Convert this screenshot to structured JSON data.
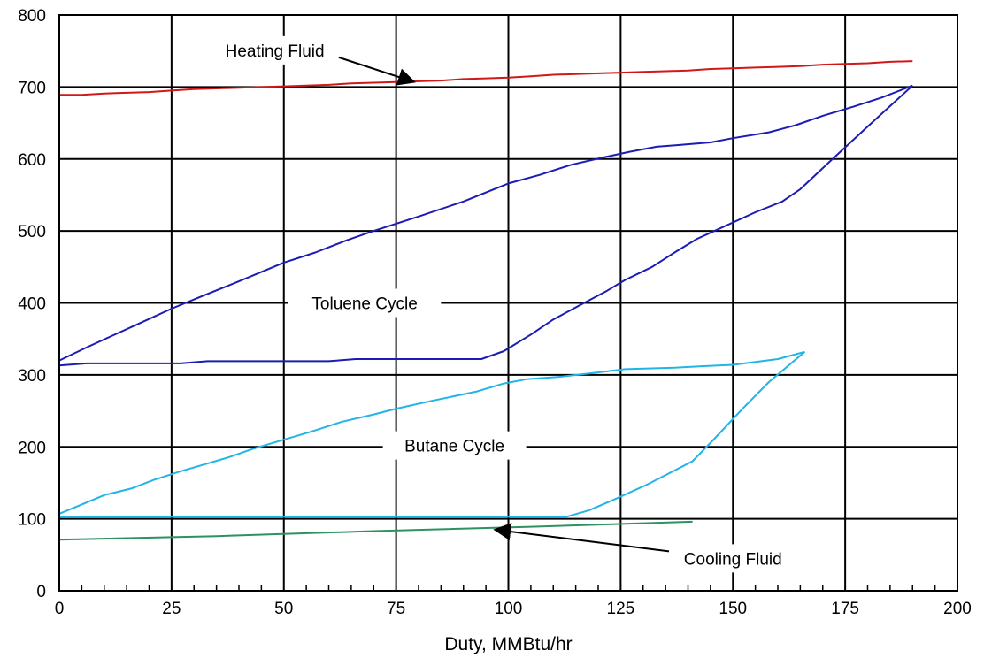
{
  "chart_data": {
    "type": "line",
    "title": "",
    "xlabel": "Duty, MMBtu/hr",
    "ylabel": "",
    "xlim": [
      0,
      200
    ],
    "ylim": [
      0,
      800
    ],
    "x_ticks": [
      0,
      25,
      50,
      75,
      100,
      125,
      150,
      175,
      200
    ],
    "y_ticks": [
      0,
      100,
      200,
      300,
      400,
      500,
      600,
      700,
      800
    ],
    "grid": true,
    "series": [
      {
        "color": "#d01818",
        "points": [
          [
            0,
            689
          ],
          [
            5,
            689
          ],
          [
            10,
            691
          ],
          [
            15,
            692
          ],
          [
            20,
            693
          ],
          [
            25,
            695
          ],
          [
            30,
            697
          ],
          [
            35,
            698
          ],
          [
            40,
            699
          ],
          [
            45,
            700
          ],
          [
            50,
            701
          ],
          [
            55,
            702
          ],
          [
            60,
            703
          ],
          [
            65,
            705
          ],
          [
            70,
            706
          ],
          [
            75,
            707
          ],
          [
            80,
            708
          ],
          [
            85,
            709
          ],
          [
            90,
            711
          ],
          [
            95,
            712
          ],
          [
            100,
            713
          ],
          [
            105,
            715
          ],
          [
            110,
            717
          ],
          [
            115,
            718
          ],
          [
            120,
            719
          ],
          [
            125,
            720
          ],
          [
            130,
            721
          ],
          [
            135,
            722
          ],
          [
            140,
            723
          ],
          [
            145,
            725
          ],
          [
            150,
            726
          ],
          [
            155,
            727
          ],
          [
            160,
            728
          ],
          [
            165,
            729
          ],
          [
            170,
            731
          ],
          [
            175,
            732
          ],
          [
            180,
            733
          ],
          [
            185,
            735
          ],
          [
            190,
            736
          ]
        ]
      },
      {
        "color": "#1c1cb4",
        "points": [
          [
            0,
            320
          ],
          [
            6,
            338
          ],
          [
            12,
            355
          ],
          [
            18,
            372
          ],
          [
            25,
            392
          ],
          [
            32,
            410
          ],
          [
            40,
            430
          ],
          [
            50,
            456
          ],
          [
            57,
            470
          ],
          [
            64,
            487
          ],
          [
            70,
            500
          ],
          [
            80,
            520
          ],
          [
            90,
            541
          ],
          [
            100,
            566
          ],
          [
            107,
            578
          ],
          [
            114,
            592
          ],
          [
            121,
            602
          ],
          [
            127,
            610
          ],
          [
            133,
            617
          ],
          [
            139,
            620
          ],
          [
            145,
            623
          ],
          [
            150,
            629
          ],
          [
            158,
            637
          ],
          [
            164,
            647
          ],
          [
            170,
            660
          ],
          [
            177,
            673
          ],
          [
            183,
            685
          ],
          [
            190,
            702
          ]
        ]
      },
      {
        "color": "#1c1cb4",
        "points": [
          [
            0,
            313
          ],
          [
            6,
            316
          ],
          [
            15,
            316
          ],
          [
            27,
            316
          ],
          [
            33,
            319
          ],
          [
            45,
            319
          ],
          [
            60,
            319
          ],
          [
            66,
            322
          ],
          [
            80,
            322
          ],
          [
            94,
            322
          ],
          [
            99,
            333
          ],
          [
            105,
            356
          ],
          [
            110,
            377
          ],
          [
            116,
            397
          ],
          [
            122,
            417
          ],
          [
            126,
            432
          ],
          [
            132,
            450
          ],
          [
            137,
            470
          ],
          [
            142,
            489
          ],
          [
            148,
            506
          ],
          [
            155,
            526
          ],
          [
            161,
            541
          ],
          [
            165,
            558
          ],
          [
            172,
            599
          ],
          [
            180,
            645
          ],
          [
            190,
            702
          ]
        ]
      },
      {
        "color": "#22b4e6",
        "points": [
          [
            0,
            107
          ],
          [
            5,
            120
          ],
          [
            10,
            133
          ],
          [
            16,
            142
          ],
          [
            21,
            154
          ],
          [
            27,
            166
          ],
          [
            32,
            175
          ],
          [
            38,
            186
          ],
          [
            43,
            197
          ],
          [
            50,
            210
          ],
          [
            56,
            221
          ],
          [
            63,
            235
          ],
          [
            70,
            245
          ],
          [
            75,
            253
          ],
          [
            83,
            264
          ],
          [
            93,
            277
          ],
          [
            99,
            288
          ],
          [
            104,
            294
          ],
          [
            111,
            297
          ],
          [
            118,
            302
          ],
          [
            126,
            308
          ],
          [
            137,
            310
          ],
          [
            143,
            312
          ],
          [
            150,
            314
          ],
          [
            155,
            318
          ],
          [
            160,
            322
          ],
          [
            166,
            332
          ]
        ]
      },
      {
        "color": "#22b4e6",
        "points": [
          [
            0,
            103
          ],
          [
            20,
            103
          ],
          [
            50,
            103
          ],
          [
            80,
            103
          ],
          [
            100,
            103
          ],
          [
            113,
            103
          ],
          [
            118,
            112
          ],
          [
            124,
            128
          ],
          [
            131,
            148
          ],
          [
            141,
            180
          ],
          [
            146,
            212
          ],
          [
            152,
            252
          ],
          [
            158,
            290
          ],
          [
            166,
            332
          ]
        ]
      },
      {
        "color": "#2e9160",
        "points": [
          [
            0,
            71
          ],
          [
            35,
            76
          ],
          [
            70,
            83
          ],
          [
            105,
            89
          ],
          [
            141,
            96
          ]
        ]
      }
    ],
    "annotations": [
      {
        "text": "Heating Fluid",
        "x_text": 48,
        "y_text": 751,
        "x_arrow": 79,
        "y_arrow": 707,
        "arrow": true
      },
      {
        "text": "Toluene Cycle",
        "x_text": 68,
        "y_text": 400,
        "arrow": false
      },
      {
        "text": "Butane Cycle",
        "x_text": 88,
        "y_text": 202,
        "arrow": false
      },
      {
        "text": "Cooling Fluid",
        "x_text": 150,
        "y_text": 45,
        "x_arrow": 97,
        "y_arrow": 85,
        "arrow": true
      }
    ]
  }
}
